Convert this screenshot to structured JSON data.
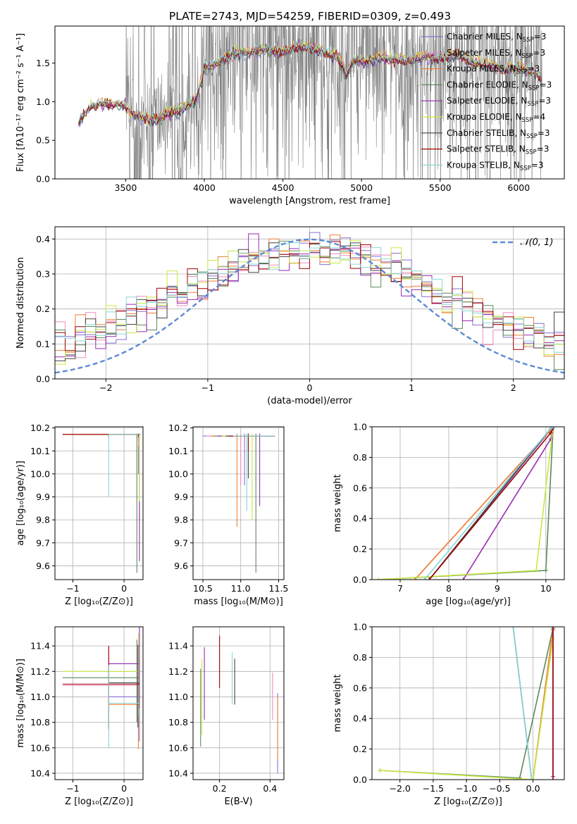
{
  "figure_title": "PLATE=2743, MJD=54259, FIBERID=0309, z=0.493",
  "models": [
    {
      "name": "Chabrier MILES",
      "legend": "Chabrier MILES, N",
      "nssp": "=3",
      "color": "#8b6fd1"
    },
    {
      "name": "Salpeter MILES",
      "legend": "Salpeter MILES, N",
      "nssp": "=3",
      "color": "#f08ac0"
    },
    {
      "name": "Kroupa MILES",
      "legend": "Kroupa MILES, N",
      "nssp": "=3",
      "color": "#ef7f33"
    },
    {
      "name": "Chabrier ELODIE",
      "legend": "Chabrier ELODIE, N",
      "nssp": "=3",
      "color": "#5b8a5b"
    },
    {
      "name": "Salpeter ELODIE",
      "legend": "Salpeter ELODIE, N",
      "nssp": "=3",
      "color": "#9a2ab5"
    },
    {
      "name": "Kroupa ELODIE",
      "legend": "Kroupa ELODIE, N",
      "nssp": "=4",
      "color": "#c9e840"
    },
    {
      "name": "Chabrier STELIB",
      "legend": "Chabrier STELIB, N",
      "nssp": "=3",
      "color": "#444444"
    },
    {
      "name": "Salpeter STELIB",
      "legend": "Salpeter STELIB, N",
      "nssp": "=3",
      "color": "#a00000"
    },
    {
      "name": "Kroupa STELIB",
      "legend": "Kroupa STELIB, N",
      "nssp": "=3",
      "color": "#8ad6d6"
    }
  ],
  "chart_data": [
    {
      "id": "spectrum",
      "type": "line",
      "xlabel": "wavelength [Angstrom, rest frame]",
      "ylabel": "Flux [fλ10⁻¹⁷ erg cm⁻² s⁻¹ A⁻¹]",
      "xlim": [
        3050,
        6290
      ],
      "ylim": [
        0,
        1.98
      ],
      "xticks": [
        3500,
        4000,
        4500,
        5000,
        5500,
        6000
      ],
      "yticks": [
        0.0,
        0.5,
        1.0,
        1.5
      ],
      "grid": false,
      "legend": "top-right",
      "observed_color": "#808080",
      "model_continuum": {
        "x": [
          3200,
          3250,
          3300,
          3350,
          3400,
          3450,
          3500,
          3550,
          3600,
          3650,
          3700,
          3750,
          3800,
          3850,
          3900,
          3950,
          4000,
          4100,
          4200,
          4300,
          4400,
          4500,
          4600,
          4700,
          4800,
          4850,
          4900,
          4950,
          5000,
          5100,
          5200,
          5300,
          5400,
          5500,
          5600,
          5700,
          5800,
          5900,
          6000,
          6100,
          6150
        ],
        "y": [
          0.72,
          0.88,
          0.95,
          0.97,
          0.96,
          0.97,
          0.95,
          0.84,
          0.8,
          0.78,
          0.76,
          0.84,
          0.87,
          0.9,
          0.95,
          1.05,
          1.42,
          1.53,
          1.63,
          1.64,
          1.68,
          1.64,
          1.72,
          1.68,
          1.62,
          1.58,
          1.35,
          1.55,
          1.52,
          1.56,
          1.55,
          1.52,
          1.58,
          1.55,
          1.6,
          1.52,
          1.47,
          1.42,
          1.44,
          1.38,
          1.3
        ]
      }
    },
    {
      "id": "residuals",
      "type": "histogram",
      "xlabel": "(data-model)/error",
      "ylabel": "Normed distribution",
      "xlim": [
        -2.5,
        2.5
      ],
      "ylim": [
        0,
        0.435
      ],
      "xticks": [
        -2,
        -1,
        0,
        1,
        2
      ],
      "yticks": [
        0.0,
        0.1,
        0.2,
        0.3,
        0.4
      ],
      "grid": true,
      "legend": "top-right",
      "gaussian_label": "𝒩(0, 1)",
      "gaussian_color": "#5b8ad6",
      "bin_width": 0.1,
      "bin_start": -2.5
    },
    {
      "id": "age-vs-Z",
      "type": "scatter",
      "xlabel": "Z [log₁₀(Z/Z⊙)]",
      "ylabel": "age  [log₁₀(age/yr)]",
      "xlim": [
        -1.35,
        0.37
      ],
      "ylim": [
        9.54,
        10.205
      ],
      "xticks": [
        -1,
        0
      ],
      "yticks": [
        9.6,
        9.7,
        9.8,
        9.9,
        10.0,
        10.1,
        10.2
      ],
      "grid": true
    },
    {
      "id": "age-vs-mass",
      "type": "scatter",
      "xlabel": "mass [log₁₀(M/M⊙)]",
      "ylabel": "",
      "xlim": [
        10.37,
        11.57
      ],
      "ylim": [
        9.54,
        10.205
      ],
      "xticks": [
        10.5,
        11.0,
        11.5
      ],
      "yticks": [
        9.6,
        9.7,
        9.8,
        9.9,
        10.0,
        10.1,
        10.2
      ],
      "grid": true
    },
    {
      "id": "massweight-vs-age",
      "type": "line",
      "xlabel": "age  [log₁₀(age/yr)]",
      "ylabel": "mass weight",
      "xlim": [
        6.42,
        10.38
      ],
      "ylim": [
        0,
        1.0
      ],
      "xticks": [
        7,
        8,
        9,
        10
      ],
      "yticks": [
        0.0,
        0.2,
        0.4,
        0.6,
        0.8,
        1.0
      ],
      "grid": true
    },
    {
      "id": "mass-vs-Z",
      "type": "scatter",
      "xlabel": "Z [log₁₀(Z/Z⊙)]",
      "ylabel": "mass [log₁₀(M/M⊙)]",
      "xlim": [
        -1.35,
        0.37
      ],
      "ylim": [
        10.35,
        11.55
      ],
      "xticks": [
        -1,
        0
      ],
      "yticks": [
        10.4,
        10.6,
        10.8,
        11.0,
        11.2,
        11.4
      ],
      "grid": true
    },
    {
      "id": "mass-vs-EBV",
      "type": "scatter",
      "xlabel": "E(B-V)",
      "ylabel": "",
      "xlim": [
        0.095,
        0.455
      ],
      "ylim": [
        10.35,
        11.55
      ],
      "xticks": [
        0.2,
        0.4
      ],
      "yticks": [
        10.4,
        10.6,
        10.8,
        11.0,
        11.2,
        11.4
      ],
      "grid": true
    },
    {
      "id": "massweight-vs-Z",
      "type": "line",
      "xlabel": "Z [log₁₀(Z/Z⊙)]",
      "ylabel": "mass weight",
      "xlim": [
        -2.42,
        0.47
      ],
      "ylim": [
        0,
        1.0
      ],
      "xticks": [
        -2.0,
        -1.5,
        -1.0,
        -0.5,
        0.0
      ],
      "yticks": [
        0.0,
        0.2,
        0.4,
        0.6,
        0.8,
        1.0
      ],
      "grid": true
    }
  ]
}
